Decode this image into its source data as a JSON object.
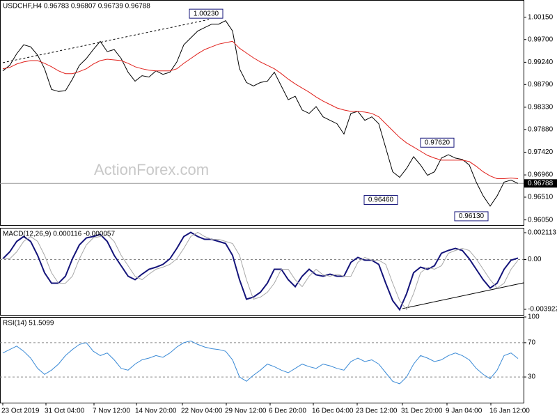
{
  "chart_data": [
    {
      "type": "line",
      "title": "USDCHF,H4  0.96783 0.96807 0.96739 0.96788",
      "watermark": "ActionForex.com",
      "xlim": [
        -0.4,
        74.8
      ],
      "ylim": [
        0.95946,
        1.005
      ],
      "yticks": [
        {
          "value": 1.0015,
          "label": "1.00150"
        },
        {
          "value": 0.997,
          "label": "0.99700"
        },
        {
          "value": 0.9924,
          "label": "0.99240"
        },
        {
          "value": 0.9879,
          "label": "0.98790"
        },
        {
          "value": 0.9833,
          "label": "0.98330"
        },
        {
          "value": 0.9788,
          "label": "0.97880"
        },
        {
          "value": 0.9742,
          "label": "0.97420"
        },
        {
          "value": 0.9696,
          "label": "0.96960"
        },
        {
          "value": 0.9651,
          "label": "0.96510"
        },
        {
          "value": 0.9605,
          "label": "0.96050"
        }
      ],
      "current_price": 0.96788,
      "annotations": [
        {
          "value": 1.0023,
          "label": "1.00230"
        },
        {
          "value": 0.9762,
          "label": "0.97620"
        },
        {
          "value": 0.9646,
          "label": "0.96460"
        },
        {
          "value": 0.9613,
          "label": "0.96130"
        }
      ],
      "series": [
        {
          "color": "#000000",
          "values": [
            0.99066,
            0.99177,
            0.99413,
            0.99594,
            0.99552,
            0.99386,
            0.99108,
            0.98691,
            0.98649,
            0.98663,
            0.98899,
            0.99177,
            0.99316,
            0.99497,
            0.99664,
            0.99455,
            0.99497,
            0.99316,
            0.99038,
            0.98857,
            0.98969,
            0.98941,
            0.99066,
            0.98996,
            0.99038,
            0.99247,
            0.99594,
            0.99733,
            0.99872,
            0.99942,
            1.00011,
            1.00011,
            1.00081,
            0.99872,
            0.99108,
            0.9883,
            0.9876,
            0.9883,
            0.98857,
            0.99038,
            0.9876,
            0.98482,
            0.98552,
            0.98274,
            0.98204,
            0.98343,
            0.98135,
            0.98065,
            0.97996,
            0.97787,
            0.98204,
            0.98246,
            0.98065,
            0.98135,
            0.97996,
            0.97509,
            0.97023,
            0.96912,
            0.97092,
            0.97329,
            0.97162,
            0.96953,
            0.97023,
            0.97301,
            0.9737,
            0.97301,
            0.97273,
            0.97162,
            0.96814,
            0.96536,
            0.96328,
            0.96536,
            0.96814,
            0.96856,
            0.96788
          ]
        },
        {
          "color": "#e0201b",
          "values": [
            0.99108,
            0.99135,
            0.99205,
            0.99247,
            0.99274,
            0.99274,
            0.99219,
            0.99149,
            0.99066,
            0.9901,
            0.9901,
            0.99052,
            0.99108,
            0.99205,
            0.99274,
            0.99302,
            0.99288,
            0.99274,
            0.99219,
            0.99149,
            0.99108,
            0.9908,
            0.99066,
            0.99066,
            0.99066,
            0.99108,
            0.99219,
            0.99316,
            0.99413,
            0.99497,
            0.99552,
            0.99608,
            0.99636,
            0.99664,
            0.99524,
            0.99427,
            0.9933,
            0.99247,
            0.99177,
            0.99108,
            0.9901,
            0.98899,
            0.98802,
            0.98718,
            0.98635,
            0.98538,
            0.98454,
            0.98385,
            0.98315,
            0.98274,
            0.98246,
            0.98246,
            0.98232,
            0.98204,
            0.98135,
            0.97996,
            0.97857,
            0.97718,
            0.97607,
            0.97523,
            0.9744,
            0.97356,
            0.97301,
            0.97259,
            0.97259,
            0.97259,
            0.97259,
            0.97231,
            0.97134,
            0.97023,
            0.96939,
            0.96884,
            0.96884,
            0.96897,
            0.96884
          ]
        }
      ]
    },
    {
      "type": "line",
      "title": "MACD(12,26,9) 0.000116 -0.000057",
      "xlim": [
        -0.4,
        74.8
      ],
      "ylim": [
        -0.004361,
        0.002497
      ],
      "yticks": [
        0.002113,
        {
          "value": 0,
          "label": "0.00"
        },
        -0.003922
      ],
      "reference_lines": [
        0
      ],
      "series": [
        {
          "color": "#14147a",
          "values": [
            5.5e-05,
            0.000603,
            0.001426,
            0.00181,
            0.001426,
            0.000329,
            -0.001042,
            -0.001865,
            -0.001865,
            -0.001317,
            5.5e-05,
            0.001152,
            0.001701,
            0.00181,
            0.001975,
            0.001426,
            0.000329,
            -0.000494,
            -0.001317,
            -0.001591,
            -0.001152,
            -0.000768,
            -0.000603,
            -0.000384,
            5.5e-05,
            0.000878,
            0.00181,
            0.00214,
            0.00181,
            0.001591,
            0.001591,
            0.001426,
            0.001262,
            0.000329,
            -0.001591,
            -0.003127,
            -0.002962,
            -0.002578,
            -0.001865,
            -0.000768,
            -0.000768,
            -0.001591,
            -0.00214,
            -0.001317,
            -0.000768,
            -0.001207,
            -0.001317,
            -0.001152,
            -0.001317,
            -0.001317,
            -0.000219,
            0.000165,
            -5.5e-05,
            -5.5e-05,
            -0.000384,
            -0.001865,
            -0.003237,
            -0.00395,
            -0.002688,
            -0.001042,
            -0.000603,
            -0.000768,
            -0.000494,
            0.000494,
            0.000713,
            0.000878,
            0.000713,
            5.5e-05,
            -0.000768,
            -0.001591,
            -0.002249,
            -0.001865,
            -0.000768,
            -5.5e-05,
            0.000116
          ]
        },
        {
          "color": "#a8a8a8",
          "values": [
            5.5e-05,
            5.5e-05,
            0.000603,
            0.001426,
            0.00181,
            0.001426,
            0.000329,
            -0.001042,
            -0.001865,
            -0.001865,
            -0.001317,
            5.5e-05,
            0.001152,
            0.001701,
            0.00181,
            0.001975,
            0.001426,
            0.000329,
            -0.000494,
            -0.001317,
            -0.001591,
            -0.001152,
            -0.000768,
            -0.000603,
            -0.000384,
            5.5e-05,
            0.000878,
            0.00181,
            0.00214,
            0.00181,
            0.001591,
            0.001591,
            0.001426,
            0.001262,
            0.000329,
            -0.001591,
            -0.003127,
            -0.002962,
            -0.002578,
            -0.001865,
            -0.000768,
            -0.000768,
            -0.001591,
            -0.00214,
            -0.001317,
            -0.000768,
            -0.001207,
            -0.001317,
            -0.001152,
            -0.001317,
            -0.001317,
            -0.000219,
            0.000165,
            -5.5e-05,
            -5.5e-05,
            -0.000384,
            -0.001865,
            -0.003237,
            -0.00395,
            -0.002688,
            -0.001042,
            -0.000603,
            -0.000768,
            -0.000494,
            0.000494,
            0.000713,
            0.000878,
            0.000713,
            5.5e-05,
            -0.000768,
            -0.001591,
            -0.002249,
            -0.001865,
            -0.000768,
            -5.7e-05
          ]
        }
      ]
    },
    {
      "type": "line",
      "title": "RSI(14) 51.5099",
      "xlim": [
        -0.4,
        74.8
      ],
      "ylim": [
        0,
        100
      ],
      "yticks": [
        100,
        70,
        30
      ],
      "reference_lines": [
        70,
        30
      ],
      "xticks": [
        {
          "value": 0,
          "label": "23 Oct 2019"
        },
        {
          "value": 6.2,
          "label": "31 Oct 04:00"
        },
        {
          "value": 13.1,
          "label": "7 Nov 12:00"
        },
        {
          "value": 19.2,
          "label": "14 Nov 20:00"
        },
        {
          "value": 25.8,
          "label": "22 Nov 04:00"
        },
        {
          "value": 32.1,
          "label": "29 Nov 12:00"
        },
        {
          "value": 38.4,
          "label": "6 Dec 20:00"
        },
        {
          "value": 44.6,
          "label": "16 Dec 04:00"
        },
        {
          "value": 50.9,
          "label": "23 Dec 12:00"
        },
        {
          "value": 57.4,
          "label": "31 Dec 20:00"
        },
        {
          "value": 63.8,
          "label": "9 Jan 04:00"
        },
        {
          "value": 70.1,
          "label": "16 Jan 12:00"
        }
      ],
      "series": [
        {
          "color": "#3a8ad6",
          "values": [
            58,
            62,
            66,
            60,
            52,
            40,
            33,
            38,
            45,
            55,
            62,
            68,
            70,
            60,
            55,
            58,
            50,
            40,
            38,
            45,
            50,
            52,
            55,
            53,
            58,
            65,
            70,
            72,
            68,
            65,
            63,
            62,
            60,
            50,
            30,
            25,
            32,
            38,
            45,
            42,
            38,
            35,
            40,
            45,
            42,
            40,
            45,
            43,
            40,
            38,
            48,
            52,
            48,
            50,
            45,
            35,
            25,
            22,
            30,
            45,
            55,
            52,
            48,
            50,
            55,
            58,
            55,
            50,
            40,
            33,
            28,
            38,
            55,
            58,
            51.5099
          ]
        }
      ]
    }
  ]
}
